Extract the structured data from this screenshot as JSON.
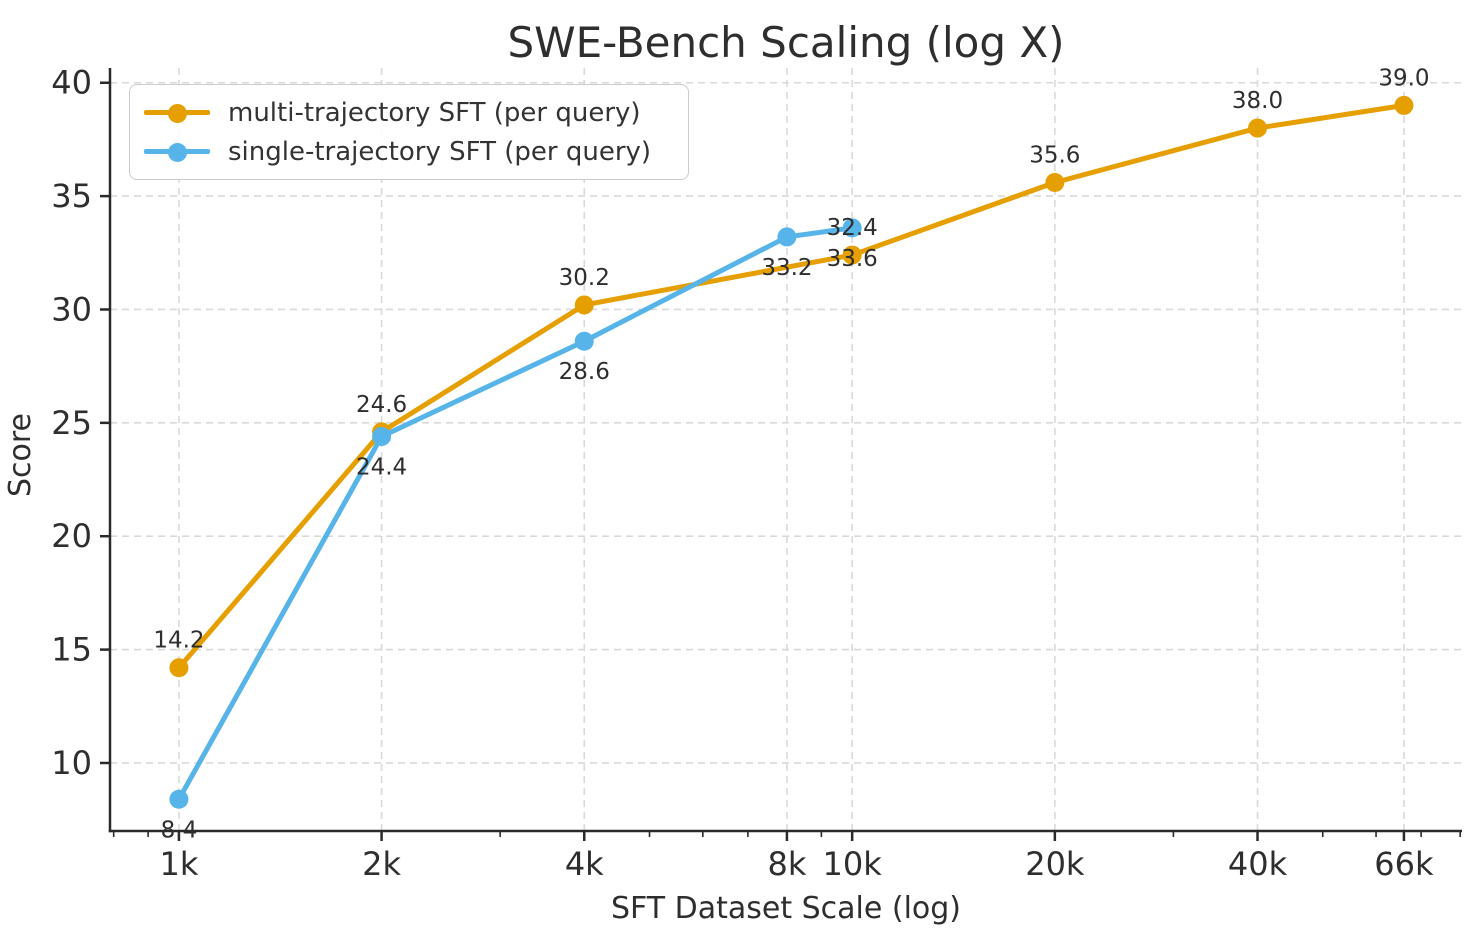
{
  "title": "SWE-Bench Scaling (log X)",
  "colors": {
    "multi_trajectory": "#E69F00",
    "single_trajectory": "#56B4E9",
    "grid": "#d9d9d9",
    "spine": "#2a2a2a",
    "text": "#2e2e2e",
    "legend_border": "#cccccc"
  },
  "chart_data": {
    "type": "line",
    "title": "SWE-Bench Scaling (log X)",
    "xlabel": "SFT Dataset Scale (log)",
    "ylabel": "Score",
    "x_scale": "log",
    "grid": true,
    "grid_style": "dashed",
    "legend_position": "upper left",
    "xlim": [
      790,
      80500
    ],
    "ylim": [
      7.0,
      40.65
    ],
    "x_ticks": [
      {
        "value": 1000,
        "label": "1k"
      },
      {
        "value": 2000,
        "label": "2k"
      },
      {
        "value": 4000,
        "label": "4k"
      },
      {
        "value": 8000,
        "label": "8k"
      },
      {
        "value": 10000,
        "label": "10k"
      },
      {
        "value": 20000,
        "label": "20k"
      },
      {
        "value": 40000,
        "label": "40k"
      },
      {
        "value": 66000,
        "label": "66k"
      }
    ],
    "x_minor_ticks": [
      800,
      900,
      3000,
      5000,
      6000,
      7000,
      9000,
      30000,
      50000,
      60000,
      70000,
      80000
    ],
    "y_ticks": [
      10,
      15,
      20,
      25,
      30,
      35,
      40
    ],
    "series": [
      {
        "name": "multi-trajectory SFT (per query)",
        "color": "#E69F00",
        "label_side": "above",
        "x": [
          1000,
          2000,
          4000,
          10000,
          20000,
          40000,
          66000
        ],
        "values": [
          14.2,
          24.6,
          30.2,
          32.4,
          35.6,
          38.0,
          39.0
        ],
        "point_labels": [
          "14.2",
          "24.6",
          "30.2",
          "32.4",
          "35.6",
          "38.0",
          "39.0"
        ]
      },
      {
        "name": "single-trajectory SFT (per query)",
        "color": "#56B4E9",
        "label_side": "below",
        "x": [
          1000,
          2000,
          4000,
          8000,
          10000
        ],
        "values": [
          8.4,
          24.4,
          28.6,
          33.2,
          33.6
        ],
        "point_labels": [
          "8.4",
          "24.4",
          "28.6",
          "33.2",
          "33.6"
        ]
      }
    ]
  }
}
